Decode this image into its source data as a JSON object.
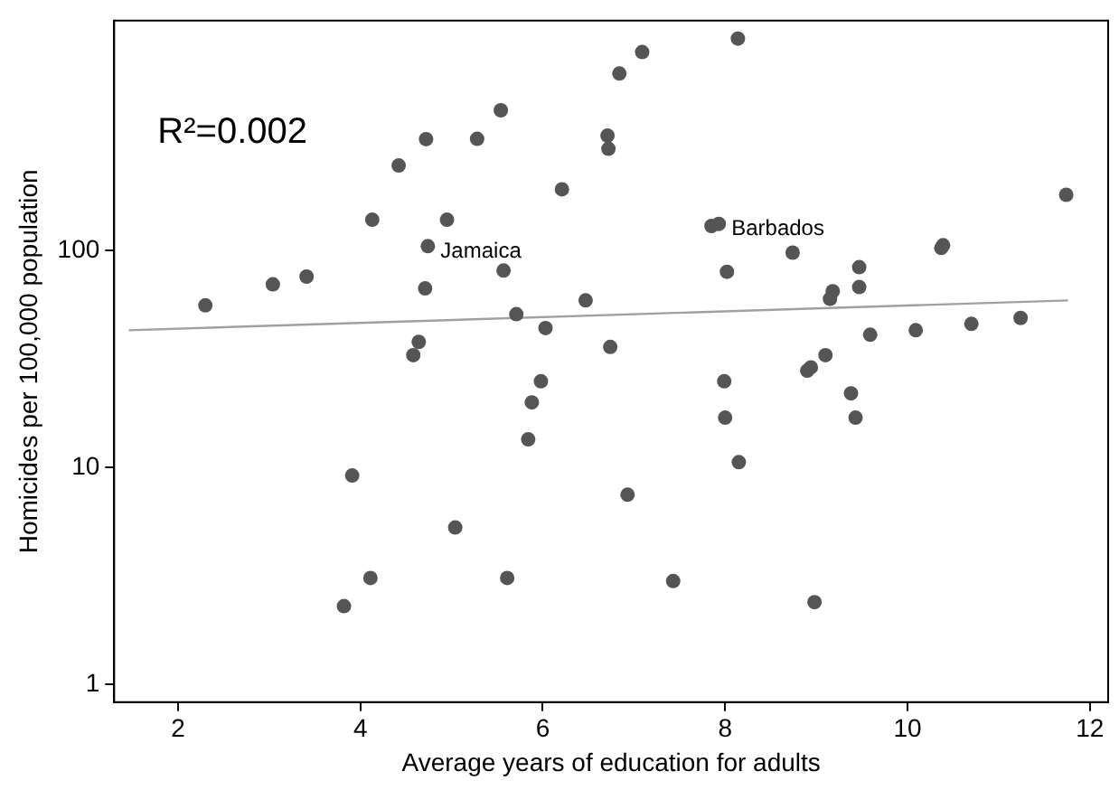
{
  "chart_data": {
    "type": "scatter",
    "xlabel": "Average years of education for adults",
    "ylabel": "Homicides per 100,000 population",
    "log": "y",
    "xlim": [
      1.3,
      12.2
    ],
    "xticks": [
      2,
      4,
      6,
      8,
      10,
      12
    ],
    "ylim": [
      0.83,
      1150
    ],
    "yticks": [
      1,
      10,
      100
    ],
    "grid": false,
    "legend": false,
    "annotations": [
      "R²=0.002",
      {
        "text": "Jamaica",
        "x": 4.74,
        "y": 105
      },
      {
        "text": "Barbados",
        "x": 7.93,
        "y": 133
      }
    ],
    "series": [
      {
        "type": "scatter",
        "marker": "circle",
        "color": "#555555",
        "x": [
          4.72,
          4.42,
          4.13,
          4.74,
          2.3,
          3.04,
          3.41,
          4.71,
          4.64,
          4.58,
          5.28,
          5.54,
          6.21,
          6.71,
          6.72,
          6.84,
          7.09,
          8.14,
          4.95,
          5.57,
          7.85,
          7.93,
          8.02,
          6.47,
          5.71,
          6.03,
          6.74,
          11.74,
          8.74,
          10.37,
          10.39,
          9.47,
          9.47,
          9.18,
          9.15,
          9.59,
          10.09,
          10.7,
          11.24,
          9.1,
          8.9,
          8.94,
          9.38,
          9.43,
          8.98,
          5.98,
          5.88,
          5.84,
          5.04,
          5.61,
          6.93,
          7.43,
          7.99,
          8.0,
          8.15,
          3.91,
          4.11,
          3.82
        ],
        "values": [
          327,
          247,
          139,
          105,
          56,
          70,
          76,
          67,
          38,
          33,
          328,
          444,
          192,
          339,
          295,
          656,
          824,
          950,
          139,
          81,
          130,
          133,
          80,
          59,
          51,
          44,
          36,
          181,
          98,
          103,
          106,
          84,
          68,
          65,
          60,
          41,
          43,
          46,
          49,
          33,
          28,
          29,
          22,
          17,
          2.4,
          25,
          20,
          13.5,
          5.3,
          3.1,
          7.5,
          3.0,
          25,
          17,
          10.6,
          9.2,
          3.1,
          2.3
        ]
      },
      {
        "type": "line",
        "color": "#a0a0a0",
        "x": [
          1.46,
          11.76
        ],
        "values": [
          43,
          59
        ]
      }
    ]
  }
}
